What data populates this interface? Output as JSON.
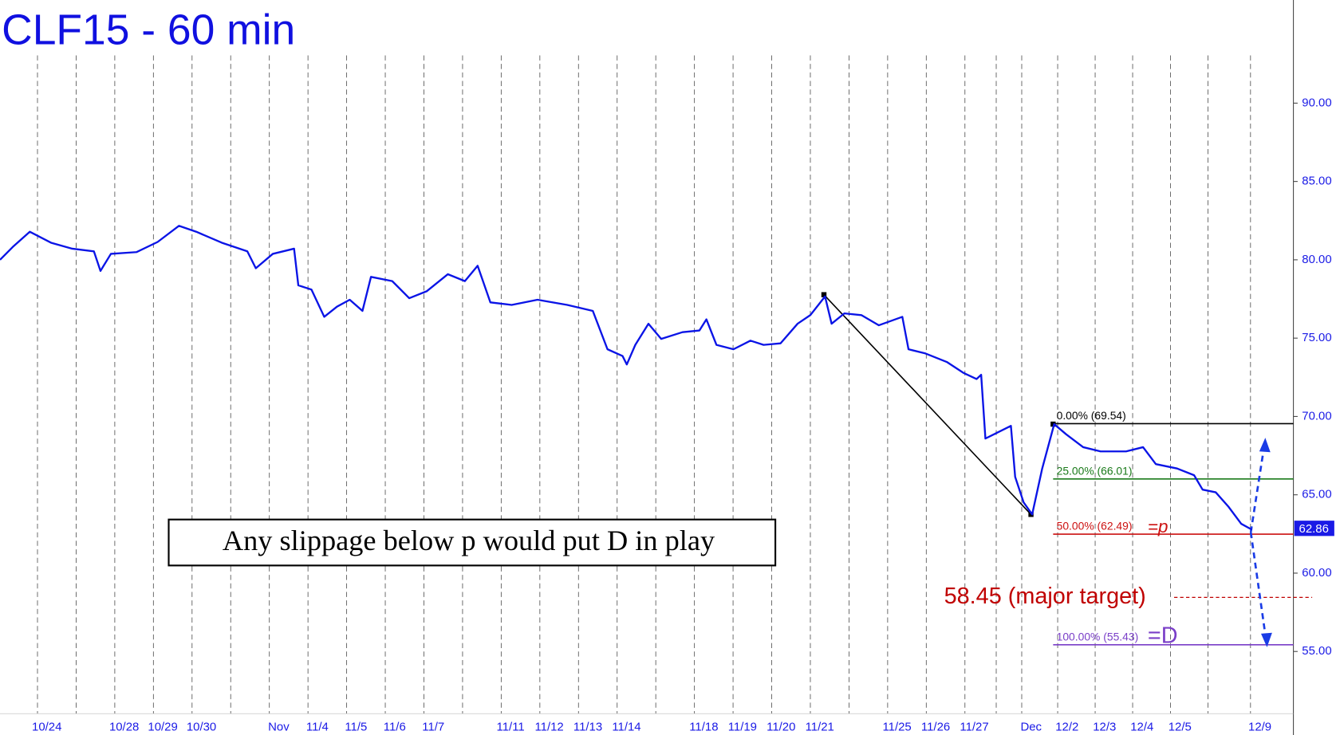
{
  "chart_data": {
    "type": "line",
    "title": "CLF15 - 60 min",
    "annotation": "Any slippage below p would put D in play",
    "color": "#0a14e6",
    "xlim": [
      -0.97,
      32.5
    ],
    "ylim": [
      51.03,
      96.58
    ],
    "xticks": [
      {
        "value": 0,
        "label": "10/24"
      },
      {
        "value": 1,
        "label": null
      },
      {
        "value": 2,
        "label": "10/28"
      },
      {
        "value": 3,
        "label": "10/29"
      },
      {
        "value": 4,
        "label": "10/30"
      },
      {
        "value": 5,
        "label": null
      },
      {
        "value": 6,
        "label": "Nov"
      },
      {
        "value": 7,
        "label": "11/4"
      },
      {
        "value": 8,
        "label": "11/5"
      },
      {
        "value": 9,
        "label": "11/6"
      },
      {
        "value": 10,
        "label": "11/7"
      },
      {
        "value": 11,
        "label": null
      },
      {
        "value": 12,
        "label": "11/11"
      },
      {
        "value": 13,
        "label": "11/12"
      },
      {
        "value": 14,
        "label": "11/13"
      },
      {
        "value": 15,
        "label": "11/14"
      },
      {
        "value": 16,
        "label": null
      },
      {
        "value": 17,
        "label": "11/18"
      },
      {
        "value": 18,
        "label": "11/19"
      },
      {
        "value": 19,
        "label": "11/20"
      },
      {
        "value": 20,
        "label": "11/21"
      },
      {
        "value": 21,
        "label": null
      },
      {
        "value": 22,
        "label": "11/25"
      },
      {
        "value": 23,
        "label": "11/26"
      },
      {
        "value": 24,
        "label": "11/27"
      },
      {
        "value": 24.81,
        "label": null
      },
      {
        "value": 25.47,
        "label": "Dec"
      },
      {
        "value": 26.4,
        "label": "12/2"
      },
      {
        "value": 27.37,
        "label": "12/3"
      },
      {
        "value": 28.34,
        "label": "12/4"
      },
      {
        "value": 29.32,
        "label": "12/5"
      },
      {
        "value": 30.29,
        "label": null
      },
      {
        "value": 31.39,
        "label": "12/9"
      }
    ],
    "yticks": [
      {
        "value": 55,
        "label": "55.00"
      },
      {
        "value": 60,
        "label": "60.00"
      },
      {
        "value": 65,
        "label": "65.00"
      },
      {
        "value": 70,
        "label": "70.00"
      },
      {
        "value": 75,
        "label": "75.00"
      },
      {
        "value": 80,
        "label": "80.00"
      },
      {
        "value": 85,
        "label": "85.00"
      },
      {
        "value": 90,
        "label": "90.00"
      }
    ],
    "x": [
      -0.97,
      -0.64,
      -0.2,
      0.35,
      0.9,
      1.46,
      1.63,
      1.9,
      2.56,
      3.11,
      3.66,
      4.11,
      4.77,
      5.43,
      5.65,
      6.09,
      6.64,
      6.75,
      7.09,
      7.42,
      7.75,
      8.08,
      8.41,
      8.63,
      9.18,
      9.62,
      10.07,
      10.62,
      11.06,
      11.39,
      11.72,
      12.27,
      12.94,
      13.71,
      14.37,
      14.75,
      15.14,
      15.25,
      15.47,
      15.81,
      16.14,
      16.69,
      17.13,
      17.31,
      17.57,
      18.01,
      18.45,
      18.79,
      19.23,
      19.67,
      20,
      20.38,
      20.55,
      20.88,
      21.32,
      21.77,
      22.38,
      22.54,
      22.98,
      23.53,
      23.97,
      24.3,
      24.42,
      24.53,
      24.75,
      25.19,
      25.3,
      25.52,
      25.74,
      26,
      26.31,
      26.62,
      27.06,
      27.51,
      28.17,
      28.61,
      28.94,
      29.49,
      29.93,
      30.15,
      30.49,
      30.82,
      31.15,
      31.43
    ],
    "values": [
      80.0,
      80.82,
      81.79,
      81.09,
      80.71,
      80.54,
      79.29,
      80.38,
      80.49,
      81.14,
      82.17,
      81.79,
      81.09,
      80.54,
      79.46,
      80.38,
      80.71,
      78.37,
      78.1,
      76.36,
      77.01,
      77.45,
      76.74,
      78.91,
      78.64,
      77.55,
      77.99,
      79.08,
      78.64,
      79.62,
      77.28,
      77.12,
      77.45,
      77.12,
      76.74,
      74.29,
      73.86,
      73.32,
      74.57,
      75.92,
      74.95,
      75.38,
      75.49,
      76.2,
      74.57,
      74.29,
      74.84,
      74.57,
      74.67,
      75.92,
      76.47,
      77.66,
      75.92,
      76.58,
      76.47,
      75.82,
      76.36,
      74.29,
      74.02,
      73.48,
      72.77,
      72.39,
      72.66,
      68.59,
      68.86,
      69.4,
      66.14,
      64.51,
      63.75,
      66.68,
      69.51,
      68.86,
      68.04,
      67.77,
      67.77,
      68.04,
      66.96,
      66.68,
      66.25,
      65.33,
      65.16,
      64.24,
      63.15,
      62.77
    ],
    "last_price": 62.86,
    "levels": [
      {
        "label": "0.00% (69.54)",
        "value": 69.54,
        "color": "#000000"
      },
      {
        "label": "25.00% (66.01)",
        "value": 66.01,
        "color": "#1a7a1a"
      },
      {
        "label": "50.00% (62.49)",
        "value": 62.49,
        "color": "#cc1111",
        "tag": "=p"
      },
      {
        "label": "100.00% (55.43)",
        "value": 55.43,
        "color": "#7a3fc8",
        "tag": "=D"
      }
    ],
    "target": {
      "label": "58.45 (major target)",
      "value": 58.45,
      "color": "#c00000"
    }
  }
}
